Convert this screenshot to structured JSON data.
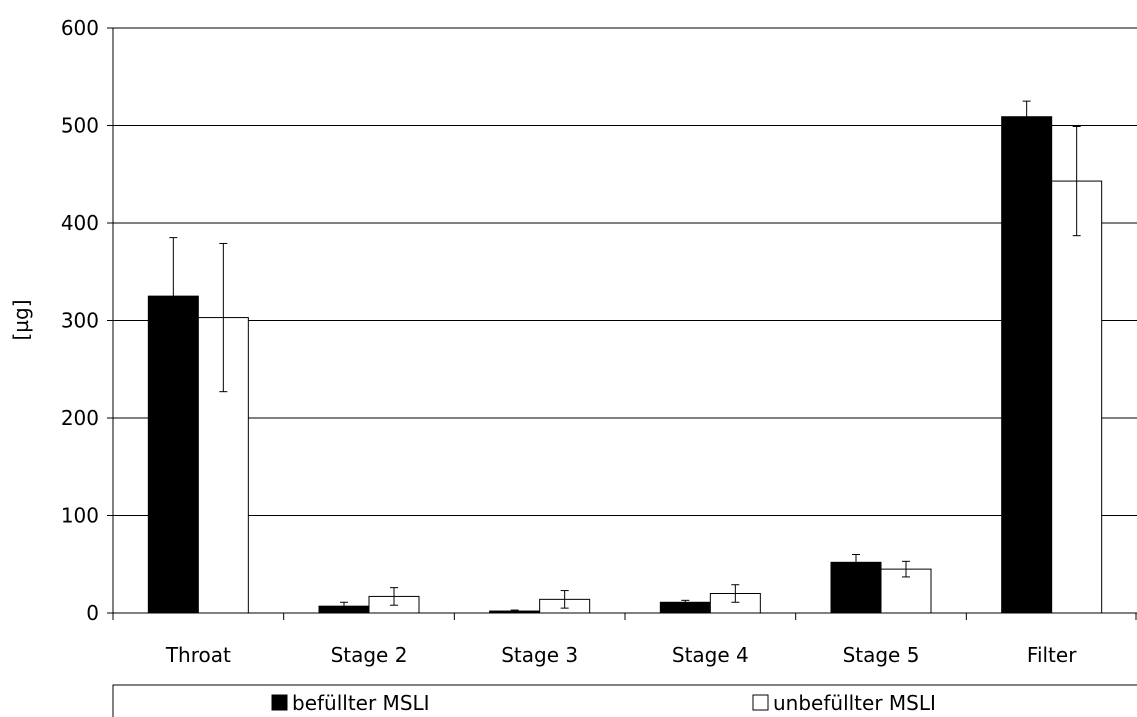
{
  "chart_data": {
    "type": "bar",
    "categories": [
      "Throat",
      "Stage 2",
      "Stage 3",
      "Stage 4",
      "Stage 5",
      "Filter"
    ],
    "series": [
      {
        "name": "befüllter MSLI",
        "color": "#000000",
        "values": [
          325,
          7,
          2,
          11,
          52,
          509
        ],
        "errors": [
          60,
          4,
          1,
          2,
          8,
          16
        ]
      },
      {
        "name": "unbefüllter MSLI",
        "color": "#ffffff",
        "values": [
          303,
          17,
          14,
          20,
          45,
          443
        ],
        "errors": [
          76,
          9,
          9,
          9,
          8,
          56
        ]
      }
    ],
    "ylabel": "[µg]",
    "xlabel": "",
    "title": "",
    "ylim": [
      0,
      600
    ],
    "yticks": [
      0,
      100,
      200,
      300,
      400,
      500,
      600
    ],
    "grid": true,
    "legend": "bottom"
  }
}
